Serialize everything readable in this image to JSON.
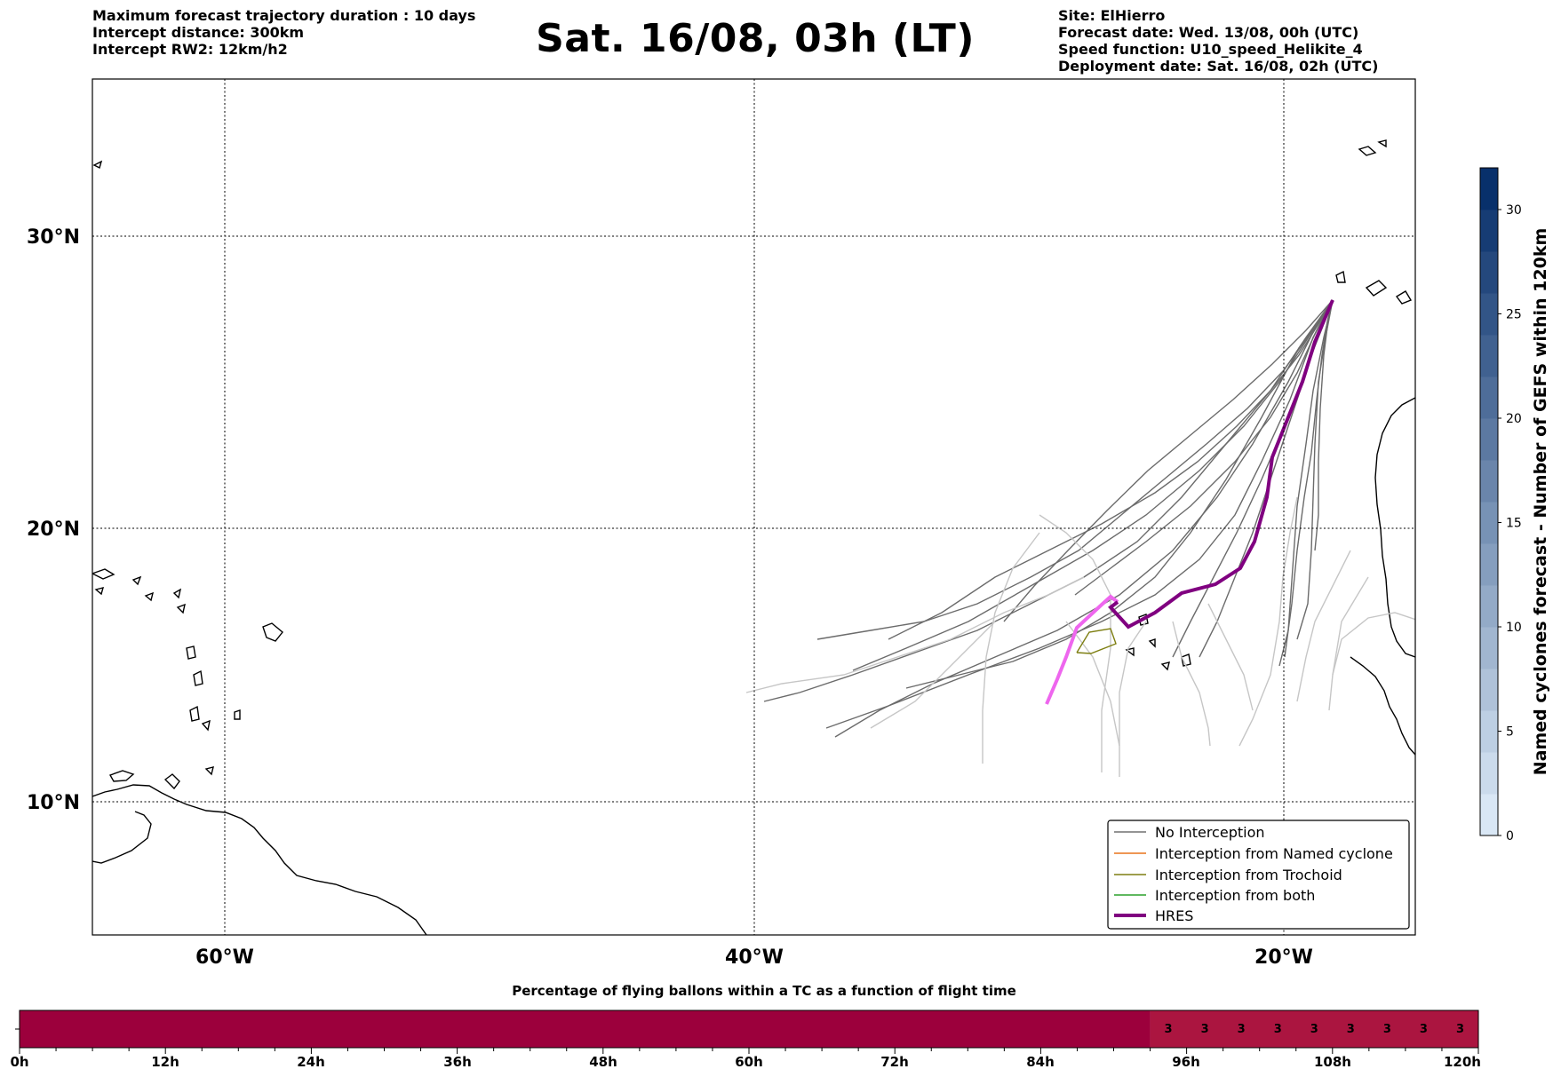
{
  "header": {
    "left": [
      "Maximum forecast trajectory duration : 10 days",
      "Intercept distance: 300km",
      "Intercept RW2: 12km/h2"
    ],
    "title": "Sat. 16/08, 03h (LT)",
    "right": [
      "Site: ElHierro",
      "Forecast date: Wed. 13/08, 00h (UTC)",
      "Speed function: U10_speed_Helikite_4",
      "Deployment date: Sat. 16/08, 02h (UTC)"
    ]
  },
  "map": {
    "lon_range": [
      -65,
      -15
    ],
    "lat_range": [
      5.4,
      34.7
    ],
    "lat_labels": [
      "30°N",
      "20°N",
      "10°N"
    ],
    "lon_labels": [
      "60°W",
      "40°W",
      "20°W"
    ],
    "gridlines": true
  },
  "legend": {
    "position": "lower-right",
    "items": [
      {
        "label": "No Interception",
        "color": "#707070"
      },
      {
        "label": "Interception from Named cyclone",
        "color": "#e8731b"
      },
      {
        "label": "Interception from Trochoid",
        "color": "#7e7f12"
      },
      {
        "label": "Interception from both",
        "color": "#2ca02c"
      },
      {
        "label": "HRES",
        "color": "#800080"
      }
    ]
  },
  "colorbar": {
    "label": "Named cyclones forecast - Number of GEFS within 120km",
    "ticks": [
      "0",
      "5",
      "10",
      "15",
      "20",
      "25",
      "30"
    ],
    "min": 0,
    "max": 32,
    "low_color": "#d9e7f5",
    "high_color": "#08306b"
  },
  "flight_bar": {
    "title": "Percentage of flying ballons within a TC as a function of flight time",
    "ticks": [
      "0h",
      "12h",
      "24h",
      "36h",
      "48h",
      "60h",
      "72h",
      "84h",
      "96h",
      "108h",
      "120h"
    ],
    "max_hours": 120,
    "segments": [
      {
        "start_h": 0,
        "end_h": 93,
        "value": "",
        "color": "#9c003c"
      },
      {
        "start_h": 93,
        "end_h": 120,
        "value": "3",
        "color": "#ab1540"
      }
    ],
    "value_cells_h": [
      94.5,
      97.5,
      100.5,
      103.5,
      106.5,
      109.5,
      112.5,
      115.5,
      118.5
    ],
    "cell_value": "3"
  }
}
